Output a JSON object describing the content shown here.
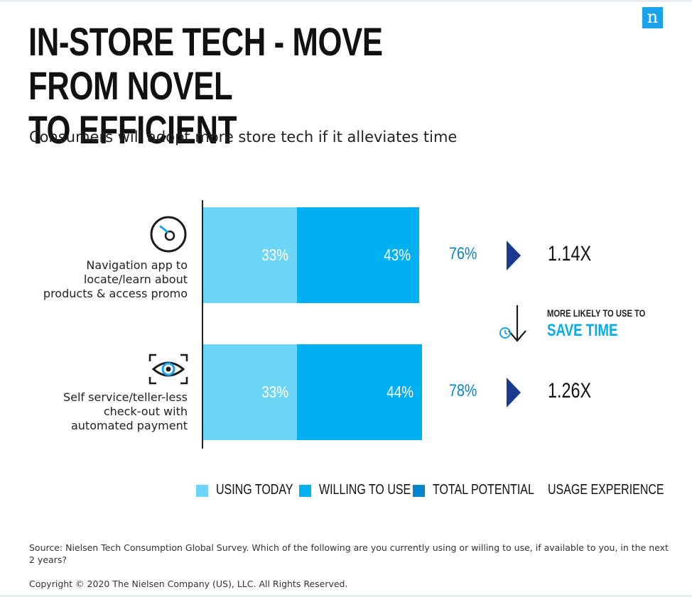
{
  "brand": {
    "logo_text": "n",
    "accent": "#1aa3e8"
  },
  "title": "IN-STORE TECH - MOVE FROM NOVEL TO EFFICIENT",
  "subtitle": "Consumers will adopt more store tech if it alleviates time",
  "chart_data": {
    "type": "bar",
    "orientation": "horizontal",
    "stacked": true,
    "categories": [
      "Navigation app to locate/learn about products & access promo",
      "Self service/teller-less check-out with automated payment"
    ],
    "series": [
      {
        "name": "USING TODAY",
        "values": [
          33,
          33
        ],
        "labels": [
          "33%",
          "33%"
        ],
        "color": "#6dd6f7"
      },
      {
        "name": "WILLING TO USE",
        "values": [
          43,
          44
        ],
        "labels": [
          "43%",
          "44%"
        ],
        "color": "#00b0f0"
      },
      {
        "name": "TOTAL POTENTIAL",
        "values": [
          76,
          78
        ],
        "labels": [
          "76%",
          "78%"
        ],
        "color": "#0086cc"
      },
      {
        "name": "USAGE EXPERIENCE",
        "labels": [
          "1.14X",
          "1.26X"
        ]
      }
    ],
    "grid": false,
    "legend": "bottom",
    "annotation": {
      "line1": "MORE LIKELY TO USE TO",
      "line2": "SAVE TIME"
    },
    "icons": [
      "compass-icon",
      "eye-scan-icon",
      "clock-down-arrow-icon",
      "play-arrow-icon"
    ]
  },
  "source": "Source: Nielsen Tech Consumption Global Survey. Which of the following are you currently using or willing to use, if available to you, in the next 2 years?",
  "copyright": "Copyright © 2020 The Nielsen Company (US), LLC. All Rights Reserved."
}
